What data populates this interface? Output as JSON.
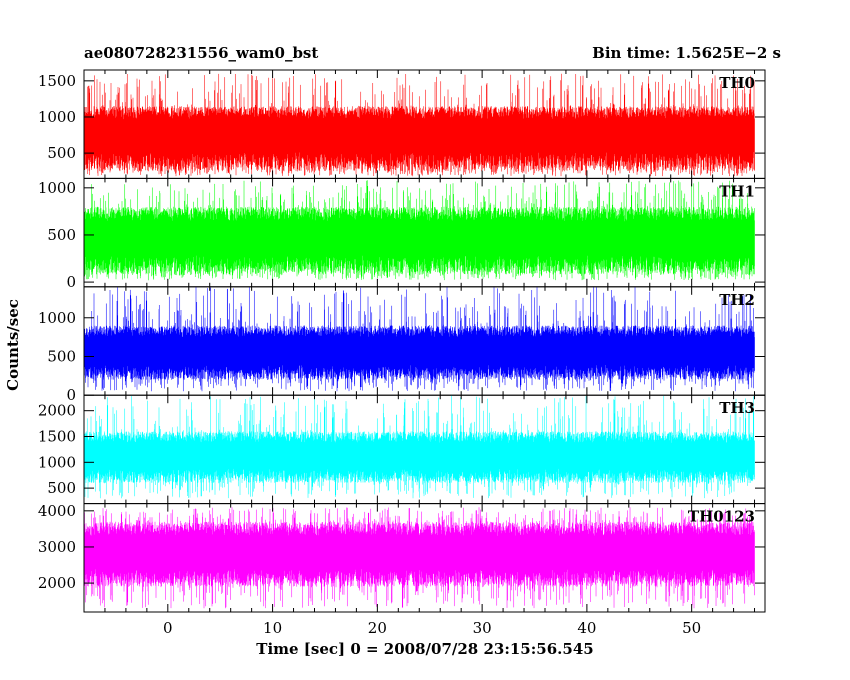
{
  "chart_data": {
    "type": "line",
    "title_left": "ae080728231556_wam0_bst",
    "title_right": "Bin time: 1.5625E−2 s",
    "xlabel": "Time [sec] 0 = 2008/07/28 23:15:56.545",
    "ylabel": "Counts/sec",
    "xlim": [
      -8,
      57
    ],
    "x_ticks": [
      0,
      10,
      20,
      30,
      40,
      50
    ],
    "data_x_range": [
      -8,
      56
    ],
    "bin_time_s": 0.015625,
    "grid": false,
    "panels": [
      {
        "name": "TH0",
        "color": "#ff0000",
        "ylim": [
          150,
          1650
        ],
        "y_ticks": [
          500,
          1000,
          1500
        ],
        "typical_low": 250,
        "typical_high": 1150,
        "mean": 750,
        "min": 180,
        "max": 1600
      },
      {
        "name": "TH1",
        "color": "#00ff00",
        "ylim": [
          -50,
          1100
        ],
        "y_ticks": [
          0,
          500,
          1000
        ],
        "typical_low": 80,
        "typical_high": 800,
        "mean": 450,
        "min": 20,
        "max": 1080
      },
      {
        "name": "TH2",
        "color": "#0000ff",
        "ylim": [
          0,
          1400
        ],
        "y_ticks": [
          0,
          500,
          1000
        ],
        "typical_low": 200,
        "typical_high": 900,
        "mean": 550,
        "min": 50,
        "max": 1400
      },
      {
        "name": "TH3",
        "color": "#00ffff",
        "ylim": [
          200,
          2300
        ],
        "y_ticks": [
          500,
          1000,
          1500,
          2000
        ],
        "typical_low": 600,
        "typical_high": 1600,
        "mean": 1100,
        "min": 300,
        "max": 2300
      },
      {
        "name": "TH0123",
        "color": "#ff00ff",
        "ylim": [
          1200,
          4200
        ],
        "y_ticks": [
          2000,
          3000,
          4000
        ],
        "typical_low": 1900,
        "typical_high": 3700,
        "mean": 2800,
        "min": 1300,
        "max": 4100
      }
    ]
  }
}
